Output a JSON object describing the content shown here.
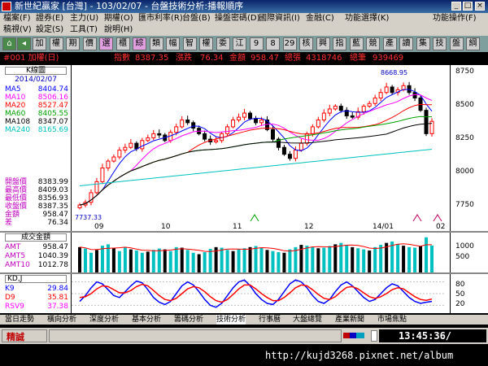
{
  "window": {
    "title": "新世紀贏家 [台灣] - 103/02/07 - 台盤技術分析:播報順序"
  },
  "menu": [
    {
      "label": "檔案(F)"
    },
    {
      "label": "證券(E)"
    },
    {
      "label": "主力(U)"
    },
    {
      "label": "期權(O)"
    },
    {
      "label": "匯市利率(R)"
    },
    {
      "label": "台盤(B)"
    },
    {
      "label": "操盤密碼(D)"
    },
    {
      "label": "國際資訊(I)"
    },
    {
      "label": "金融(C)"
    },
    {
      "label": "功能選擇(K)"
    },
    {
      "label": "功能操作(F)"
    },
    {
      "label": "稿視(V)"
    },
    {
      "label": "設定(S)"
    },
    {
      "label": "工具(T)"
    },
    {
      "label": "說明(H)"
    }
  ],
  "toolbar": [
    "加",
    "權",
    "期",
    "價",
    "選",
    "櫃",
    "綜",
    "類",
    "幅",
    "智",
    "權",
    "委",
    "江",
    "9",
    "8",
    "29",
    "核",
    "興",
    "指",
    "藍",
    "競",
    "產",
    "讀",
    "集",
    "技",
    "盤",
    "綱"
  ],
  "header": {
    "symbol": "#001 加權(日)",
    "index_label": "指數",
    "index_value": "8387.35",
    "change_label": "漲跌",
    "change_value": "76.34",
    "amount_label": "金額",
    "amount_value": "958.47",
    "total_vol_label": "總張",
    "total_vol_value": "4318746",
    "total_pen_label": "總筆",
    "total_pen_value": "939469"
  },
  "kline": {
    "title": "K線圖",
    "date": "2014/02/07",
    "ma": [
      {
        "name": "MA5",
        "value": "8404.74",
        "color": "#0000ff"
      },
      {
        "name": "MA10",
        "value": "8506.16",
        "color": "#ff00ff"
      },
      {
        "name": "MA20",
        "value": "8527.47",
        "color": "#ff0000"
      },
      {
        "name": "MA60",
        "value": "8405.55",
        "color": "#00a000"
      },
      {
        "name": "MA108",
        "value": "8347.07",
        "color": "#000000"
      },
      {
        "name": "MA240",
        "value": "8165.69",
        "color": "#00c0c0"
      }
    ],
    "ohlc": [
      {
        "name": "開盤價",
        "value": "8383.99"
      },
      {
        "name": "最高價",
        "value": "8409.03"
      },
      {
        "name": "最低價",
        "value": "8356.93"
      },
      {
        "name": "收盤價",
        "value": "8387.35"
      },
      {
        "name": "金額",
        "value": "958.47"
      },
      {
        "name": "差",
        "value": "76.34"
      }
    ],
    "high_label": "8668.95",
    "low_label": "7737.33",
    "y_ticks": [
      "8750",
      "8500",
      "8250",
      "8000",
      "7750"
    ],
    "x_ticks": [
      "09",
      "10",
      "11",
      "12",
      "14/01",
      "02"
    ]
  },
  "volume": {
    "title": "成交金額",
    "rows": [
      {
        "name": "AMT",
        "value": "958.47"
      },
      {
        "name": "AMT5",
        "value": "1040.39"
      },
      {
        "name": "AMT10",
        "value": "1012.78"
      }
    ],
    "y_ticks": [
      "1000",
      "500"
    ]
  },
  "kd": {
    "title": "KD,J",
    "rows": [
      {
        "name": "K9",
        "value": "29.84",
        "color": "#0000ff"
      },
      {
        "name": "D9",
        "value": "35.81",
        "color": "#ff0000"
      },
      {
        "name": "RSV9",
        "value": "37.38",
        "color": "#ff00ff"
      }
    ],
    "y_ticks": [
      "80",
      "50",
      "20"
    ]
  },
  "tabs": [
    "當日走勢",
    "橫向分析",
    "深度分析",
    "基本分析",
    "籌碼分析",
    "技術分析",
    "行事曆",
    "大盤總覽",
    "產業新聞",
    "市場焦點"
  ],
  "status": {
    "label": "精誠",
    "time": "13:45:36/"
  },
  "url": "http://kujd3268.pixnet.net/album",
  "chart_data": [
    {
      "type": "candlestick",
      "title": "K線圖",
      "x_ticks": [
        "09",
        "10",
        "11",
        "12",
        "14/01",
        "02"
      ],
      "ylim": [
        7650,
        8800
      ],
      "y_ticks": [
        7750,
        8000,
        8250,
        8500,
        8750
      ],
      "close": [
        7780,
        7800,
        7870,
        7950,
        8050,
        8100,
        8130,
        8180,
        8200,
        8230,
        8190,
        8250,
        8270,
        8300,
        8290,
        8250,
        8310,
        8350,
        8400,
        8380,
        8340,
        8300,
        8260,
        8240,
        8250,
        8300,
        8350,
        8400,
        8420,
        8450,
        8410,
        8380,
        8400,
        8330,
        8260,
        8200,
        8150,
        8120,
        8180,
        8230,
        8300,
        8350,
        8400,
        8450,
        8480,
        8500,
        8470,
        8430,
        8420,
        8460,
        8500,
        8520,
        8560,
        8600,
        8640,
        8600,
        8620,
        8650,
        8600,
        8560,
        8470,
        8300,
        8390
      ],
      "series": [
        {
          "name": "MA5",
          "color": "#0000ff"
        },
        {
          "name": "MA10",
          "color": "#ff00ff"
        },
        {
          "name": "MA20",
          "color": "#ff0000"
        },
        {
          "name": "MA60",
          "color": "#00a000"
        },
        {
          "name": "MA108",
          "color": "#000000"
        },
        {
          "name": "MA240",
          "color": "#00c0c0"
        }
      ]
    },
    {
      "type": "bar",
      "title": "成交金額",
      "ylim": [
        0,
        1300
      ],
      "y_ticks": [
        500,
        1000
      ],
      "values": [
        900,
        850,
        700,
        800,
        950,
        1000,
        880,
        760,
        900,
        820,
        780,
        700,
        740,
        800,
        850,
        820,
        760,
        900,
        880,
        800,
        700,
        650,
        720,
        840,
        900,
        880,
        800,
        760,
        820,
        860,
        900,
        940,
        880,
        800,
        760,
        720,
        700,
        820,
        900,
        980,
        950,
        900,
        860,
        880,
        940,
        1000,
        1050,
        980,
        900,
        860,
        820,
        780,
        900,
        980,
        1050,
        1100,
        1000,
        950,
        900,
        880,
        940,
        1250,
        958
      ]
    },
    {
      "type": "line",
      "title": "KD,J",
      "ylim": [
        0,
        100
      ],
      "y_ticks": [
        20,
        50,
        80
      ],
      "series": [
        {
          "name": "K9",
          "color": "#0000ff",
          "values": [
            30,
            45,
            65,
            80,
            75,
            60,
            45,
            40,
            55,
            70,
            82,
            78,
            60,
            40,
            28,
            22,
            30,
            50,
            70,
            80,
            72,
            55,
            35,
            20,
            15,
            25,
            45,
            65,
            80,
            85,
            70,
            50,
            35,
            25,
            22,
            35,
            55,
            75,
            85,
            80,
            65,
            45,
            30,
            25,
            35,
            55,
            72,
            80,
            70,
            55,
            40,
            30,
            35,
            50,
            65,
            75,
            70,
            55,
            40,
            30,
            25,
            28,
            30
          ]
        },
        {
          "name": "D9",
          "color": "#ff0000",
          "values": [
            40,
            42,
            50,
            62,
            70,
            68,
            60,
            52,
            52,
            58,
            68,
            74,
            70,
            58,
            45,
            35,
            32,
            38,
            50,
            62,
            68,
            65,
            55,
            42,
            32,
            28,
            35,
            48,
            62,
            72,
            72,
            62,
            50,
            40,
            32,
            32,
            40,
            52,
            65,
            72,
            70,
            60,
            48,
            38,
            35,
            42,
            55,
            66,
            68,
            62,
            52,
            42,
            38,
            42,
            50,
            60,
            65,
            62,
            52,
            42,
            35,
            33,
            36
          ]
        }
      ]
    }
  ]
}
